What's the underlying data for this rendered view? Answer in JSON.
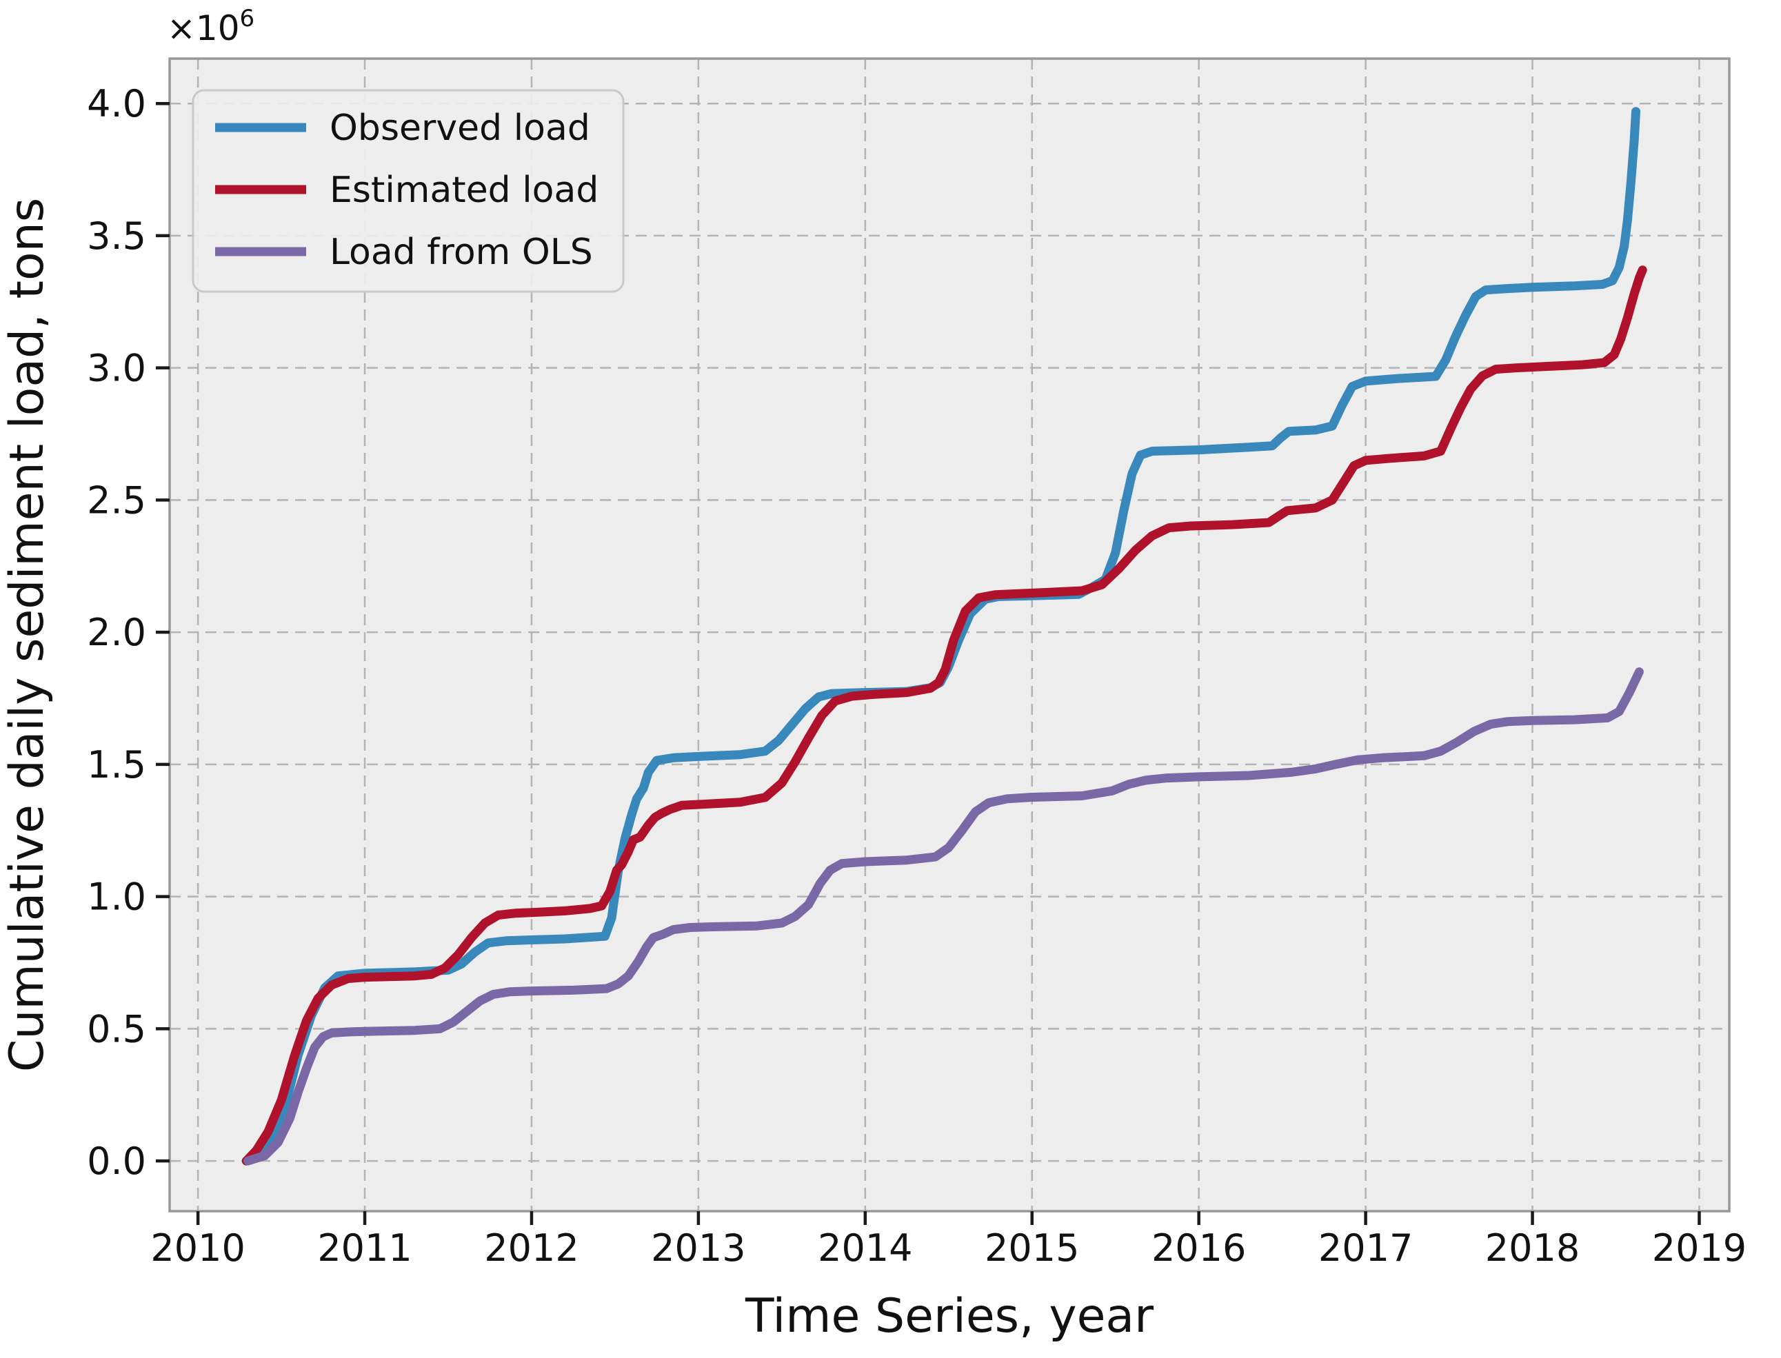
{
  "figure": {
    "background": "#ffffff",
    "plot_background": "#ededed",
    "grid_color": "#b3b3b3",
    "spine_color": "#999999",
    "tick_color": "#1a1a1a",
    "legend_border_color": "#c9c9c9",
    "legend_fill": "#ededed"
  },
  "chart_data": {
    "type": "line",
    "title": "",
    "xlabel": "Time Series, year",
    "ylabel": "Cumulative daily sediment load, tons",
    "y_offset_label": {
      "base": "×10",
      "exp": "6"
    },
    "y_scale_factor": 1000000,
    "grid": true,
    "grid_style": "dashed",
    "legend_position": "upper-left",
    "xlim": [
      2009.83,
      2019.18
    ],
    "ylim": [
      -0.19,
      4.17
    ],
    "x_ticks": [
      2010,
      2011,
      2012,
      2013,
      2014,
      2015,
      2016,
      2017,
      2018,
      2019
    ],
    "x_tick_labels": [
      "2010",
      "2011",
      "2012",
      "2013",
      "2014",
      "2015",
      "2016",
      "2017",
      "2018",
      "2019"
    ],
    "y_ticks": [
      0.0,
      0.5,
      1.0,
      1.5,
      2.0,
      2.5,
      3.0,
      3.5,
      4.0
    ],
    "y_tick_labels": [
      "0.0",
      "0.5",
      "1.0",
      "1.5",
      "2.0",
      "2.5",
      "3.0",
      "3.5",
      "4.0"
    ],
    "series": [
      {
        "name": "Observed load",
        "color": "#3888bc",
        "line_width": 13,
        "points": [
          [
            2010.29,
            0
          ],
          [
            2010.36,
            0.03
          ],
          [
            2010.44,
            0.09
          ],
          [
            2010.52,
            0.2
          ],
          [
            2010.6,
            0.4
          ],
          [
            2010.68,
            0.55
          ],
          [
            2010.76,
            0.655
          ],
          [
            2010.84,
            0.7
          ],
          [
            2011,
            0.71
          ],
          [
            2011.3,
            0.715
          ],
          [
            2011.5,
            0.722
          ],
          [
            2011.58,
            0.745
          ],
          [
            2011.66,
            0.79
          ],
          [
            2011.74,
            0.825
          ],
          [
            2011.85,
            0.833
          ],
          [
            2012,
            0.836
          ],
          [
            2012.2,
            0.84
          ],
          [
            2012.44,
            0.85
          ],
          [
            2012.48,
            0.92
          ],
          [
            2012.52,
            1.1
          ],
          [
            2012.56,
            1.22
          ],
          [
            2012.6,
            1.31
          ],
          [
            2012.63,
            1.37
          ],
          [
            2012.67,
            1.41
          ],
          [
            2012.7,
            1.47
          ],
          [
            2012.75,
            1.515
          ],
          [
            2012.85,
            1.525
          ],
          [
            2013,
            1.53
          ],
          [
            2013.25,
            1.537
          ],
          [
            2013.4,
            1.55
          ],
          [
            2013.48,
            1.59
          ],
          [
            2013.56,
            1.65
          ],
          [
            2013.64,
            1.71
          ],
          [
            2013.72,
            1.755
          ],
          [
            2013.8,
            1.768
          ],
          [
            2014,
            1.772
          ],
          [
            2014.25,
            1.776
          ],
          [
            2014.39,
            1.79
          ],
          [
            2014.45,
            1.81
          ],
          [
            2014.5,
            1.87
          ],
          [
            2014.56,
            1.97
          ],
          [
            2014.63,
            2.07
          ],
          [
            2014.72,
            2.125
          ],
          [
            2014.8,
            2.135
          ],
          [
            2015,
            2.138
          ],
          [
            2015.28,
            2.143
          ],
          [
            2015.36,
            2.17
          ],
          [
            2015.44,
            2.2
          ],
          [
            2015.5,
            2.3
          ],
          [
            2015.55,
            2.46
          ],
          [
            2015.6,
            2.6
          ],
          [
            2015.65,
            2.67
          ],
          [
            2015.72,
            2.685
          ],
          [
            2016,
            2.69
          ],
          [
            2016.3,
            2.7
          ],
          [
            2016.44,
            2.705
          ],
          [
            2016.49,
            2.735
          ],
          [
            2016.54,
            2.76
          ],
          [
            2016.7,
            2.765
          ],
          [
            2016.8,
            2.78
          ],
          [
            2016.86,
            2.86
          ],
          [
            2016.92,
            2.93
          ],
          [
            2017,
            2.95
          ],
          [
            2017.2,
            2.96
          ],
          [
            2017.42,
            2.968
          ],
          [
            2017.48,
            3.03
          ],
          [
            2017.54,
            3.12
          ],
          [
            2017.6,
            3.2
          ],
          [
            2017.66,
            3.27
          ],
          [
            2017.72,
            3.295
          ],
          [
            2017.85,
            3.3
          ],
          [
            2018,
            3.305
          ],
          [
            2018.25,
            3.31
          ],
          [
            2018.42,
            3.316
          ],
          [
            2018.48,
            3.33
          ],
          [
            2018.52,
            3.38
          ],
          [
            2018.55,
            3.46
          ],
          [
            2018.57,
            3.56
          ],
          [
            2018.59,
            3.7
          ],
          [
            2018.61,
            3.86
          ],
          [
            2018.62,
            3.97
          ]
        ]
      },
      {
        "name": "Estimated load",
        "color": "#b0122c",
        "line_width": 13,
        "points": [
          [
            2010.29,
            0
          ],
          [
            2010.35,
            0.04
          ],
          [
            2010.42,
            0.11
          ],
          [
            2010.5,
            0.23
          ],
          [
            2010.58,
            0.4
          ],
          [
            2010.65,
            0.53
          ],
          [
            2010.72,
            0.615
          ],
          [
            2010.8,
            0.665
          ],
          [
            2010.9,
            0.69
          ],
          [
            2011,
            0.695
          ],
          [
            2011.3,
            0.7
          ],
          [
            2011.4,
            0.706
          ],
          [
            2011.48,
            0.73
          ],
          [
            2011.56,
            0.78
          ],
          [
            2011.64,
            0.845
          ],
          [
            2011.72,
            0.9
          ],
          [
            2011.8,
            0.93
          ],
          [
            2011.9,
            0.937
          ],
          [
            2012,
            0.94
          ],
          [
            2012.2,
            0.946
          ],
          [
            2012.35,
            0.955
          ],
          [
            2012.42,
            0.965
          ],
          [
            2012.47,
            1.02
          ],
          [
            2012.51,
            1.1
          ],
          [
            2012.54,
            1.12
          ],
          [
            2012.58,
            1.17
          ],
          [
            2012.61,
            1.215
          ],
          [
            2012.65,
            1.225
          ],
          [
            2012.7,
            1.27
          ],
          [
            2012.74,
            1.3
          ],
          [
            2012.78,
            1.315
          ],
          [
            2012.83,
            1.33
          ],
          [
            2012.9,
            1.345
          ],
          [
            2013.05,
            1.35
          ],
          [
            2013.25,
            1.357
          ],
          [
            2013.4,
            1.375
          ],
          [
            2013.5,
            1.43
          ],
          [
            2013.58,
            1.51
          ],
          [
            2013.66,
            1.6
          ],
          [
            2013.74,
            1.685
          ],
          [
            2013.82,
            1.74
          ],
          [
            2013.92,
            1.758
          ],
          [
            2014.05,
            1.765
          ],
          [
            2014.25,
            1.772
          ],
          [
            2014.39,
            1.788
          ],
          [
            2014.44,
            1.81
          ],
          [
            2014.48,
            1.86
          ],
          [
            2014.53,
            1.97
          ],
          [
            2014.6,
            2.08
          ],
          [
            2014.68,
            2.13
          ],
          [
            2014.78,
            2.142
          ],
          [
            2015,
            2.148
          ],
          [
            2015.3,
            2.157
          ],
          [
            2015.42,
            2.18
          ],
          [
            2015.52,
            2.24
          ],
          [
            2015.62,
            2.31
          ],
          [
            2015.72,
            2.365
          ],
          [
            2015.82,
            2.395
          ],
          [
            2015.95,
            2.402
          ],
          [
            2016.2,
            2.407
          ],
          [
            2016.42,
            2.415
          ],
          [
            2016.48,
            2.44
          ],
          [
            2016.53,
            2.46
          ],
          [
            2016.7,
            2.47
          ],
          [
            2016.8,
            2.5
          ],
          [
            2016.87,
            2.57
          ],
          [
            2016.93,
            2.63
          ],
          [
            2017,
            2.65
          ],
          [
            2017.15,
            2.658
          ],
          [
            2017.35,
            2.667
          ],
          [
            2017.45,
            2.685
          ],
          [
            2017.51,
            2.77
          ],
          [
            2017.57,
            2.85
          ],
          [
            2017.63,
            2.92
          ],
          [
            2017.7,
            2.97
          ],
          [
            2017.78,
            2.995
          ],
          [
            2017.9,
            3.0
          ],
          [
            2018.1,
            3.006
          ],
          [
            2018.3,
            3.012
          ],
          [
            2018.43,
            3.02
          ],
          [
            2018.49,
            3.05
          ],
          [
            2018.53,
            3.11
          ],
          [
            2018.57,
            3.19
          ],
          [
            2018.61,
            3.28
          ],
          [
            2018.64,
            3.34
          ],
          [
            2018.66,
            3.37
          ]
        ]
      },
      {
        "name": "Load from OLS",
        "color": "#7a68a6",
        "line_width": 13,
        "points": [
          [
            2010.3,
            0
          ],
          [
            2010.4,
            0.02
          ],
          [
            2010.48,
            0.07
          ],
          [
            2010.55,
            0.16
          ],
          [
            2010.6,
            0.26
          ],
          [
            2010.65,
            0.35
          ],
          [
            2010.7,
            0.43
          ],
          [
            2010.75,
            0.47
          ],
          [
            2010.8,
            0.484
          ],
          [
            2010.9,
            0.488
          ],
          [
            2011,
            0.49
          ],
          [
            2011.3,
            0.494
          ],
          [
            2011.45,
            0.5
          ],
          [
            2011.53,
            0.525
          ],
          [
            2011.61,
            0.565
          ],
          [
            2011.69,
            0.605
          ],
          [
            2011.77,
            0.63
          ],
          [
            2011.87,
            0.64
          ],
          [
            2012,
            0.643
          ],
          [
            2012.25,
            0.646
          ],
          [
            2012.45,
            0.652
          ],
          [
            2012.52,
            0.67
          ],
          [
            2012.58,
            0.7
          ],
          [
            2012.64,
            0.755
          ],
          [
            2012.69,
            0.81
          ],
          [
            2012.73,
            0.845
          ],
          [
            2012.79,
            0.858
          ],
          [
            2012.85,
            0.875
          ],
          [
            2012.95,
            0.883
          ],
          [
            2013.1,
            0.886
          ],
          [
            2013.35,
            0.889
          ],
          [
            2013.5,
            0.9
          ],
          [
            2013.58,
            0.925
          ],
          [
            2013.66,
            0.97
          ],
          [
            2013.73,
            1.05
          ],
          [
            2013.79,
            1.1
          ],
          [
            2013.86,
            1.125
          ],
          [
            2014,
            1.132
          ],
          [
            2014.25,
            1.138
          ],
          [
            2014.42,
            1.15
          ],
          [
            2014.5,
            1.185
          ],
          [
            2014.58,
            1.25
          ],
          [
            2014.66,
            1.32
          ],
          [
            2014.74,
            1.355
          ],
          [
            2014.85,
            1.37
          ],
          [
            2015,
            1.376
          ],
          [
            2015.3,
            1.381
          ],
          [
            2015.48,
            1.4
          ],
          [
            2015.58,
            1.425
          ],
          [
            2015.68,
            1.44
          ],
          [
            2015.8,
            1.448
          ],
          [
            2016,
            1.453
          ],
          [
            2016.3,
            1.458
          ],
          [
            2016.55,
            1.47
          ],
          [
            2016.7,
            1.483
          ],
          [
            2016.82,
            1.5
          ],
          [
            2016.95,
            1.517
          ],
          [
            2017.1,
            1.525
          ],
          [
            2017.35,
            1.533
          ],
          [
            2017.45,
            1.55
          ],
          [
            2017.55,
            1.585
          ],
          [
            2017.65,
            1.625
          ],
          [
            2017.75,
            1.652
          ],
          [
            2017.85,
            1.662
          ],
          [
            2018,
            1.666
          ],
          [
            2018.25,
            1.669
          ],
          [
            2018.45,
            1.676
          ],
          [
            2018.52,
            1.7
          ],
          [
            2018.58,
            1.77
          ],
          [
            2018.64,
            1.85
          ]
        ]
      }
    ]
  }
}
